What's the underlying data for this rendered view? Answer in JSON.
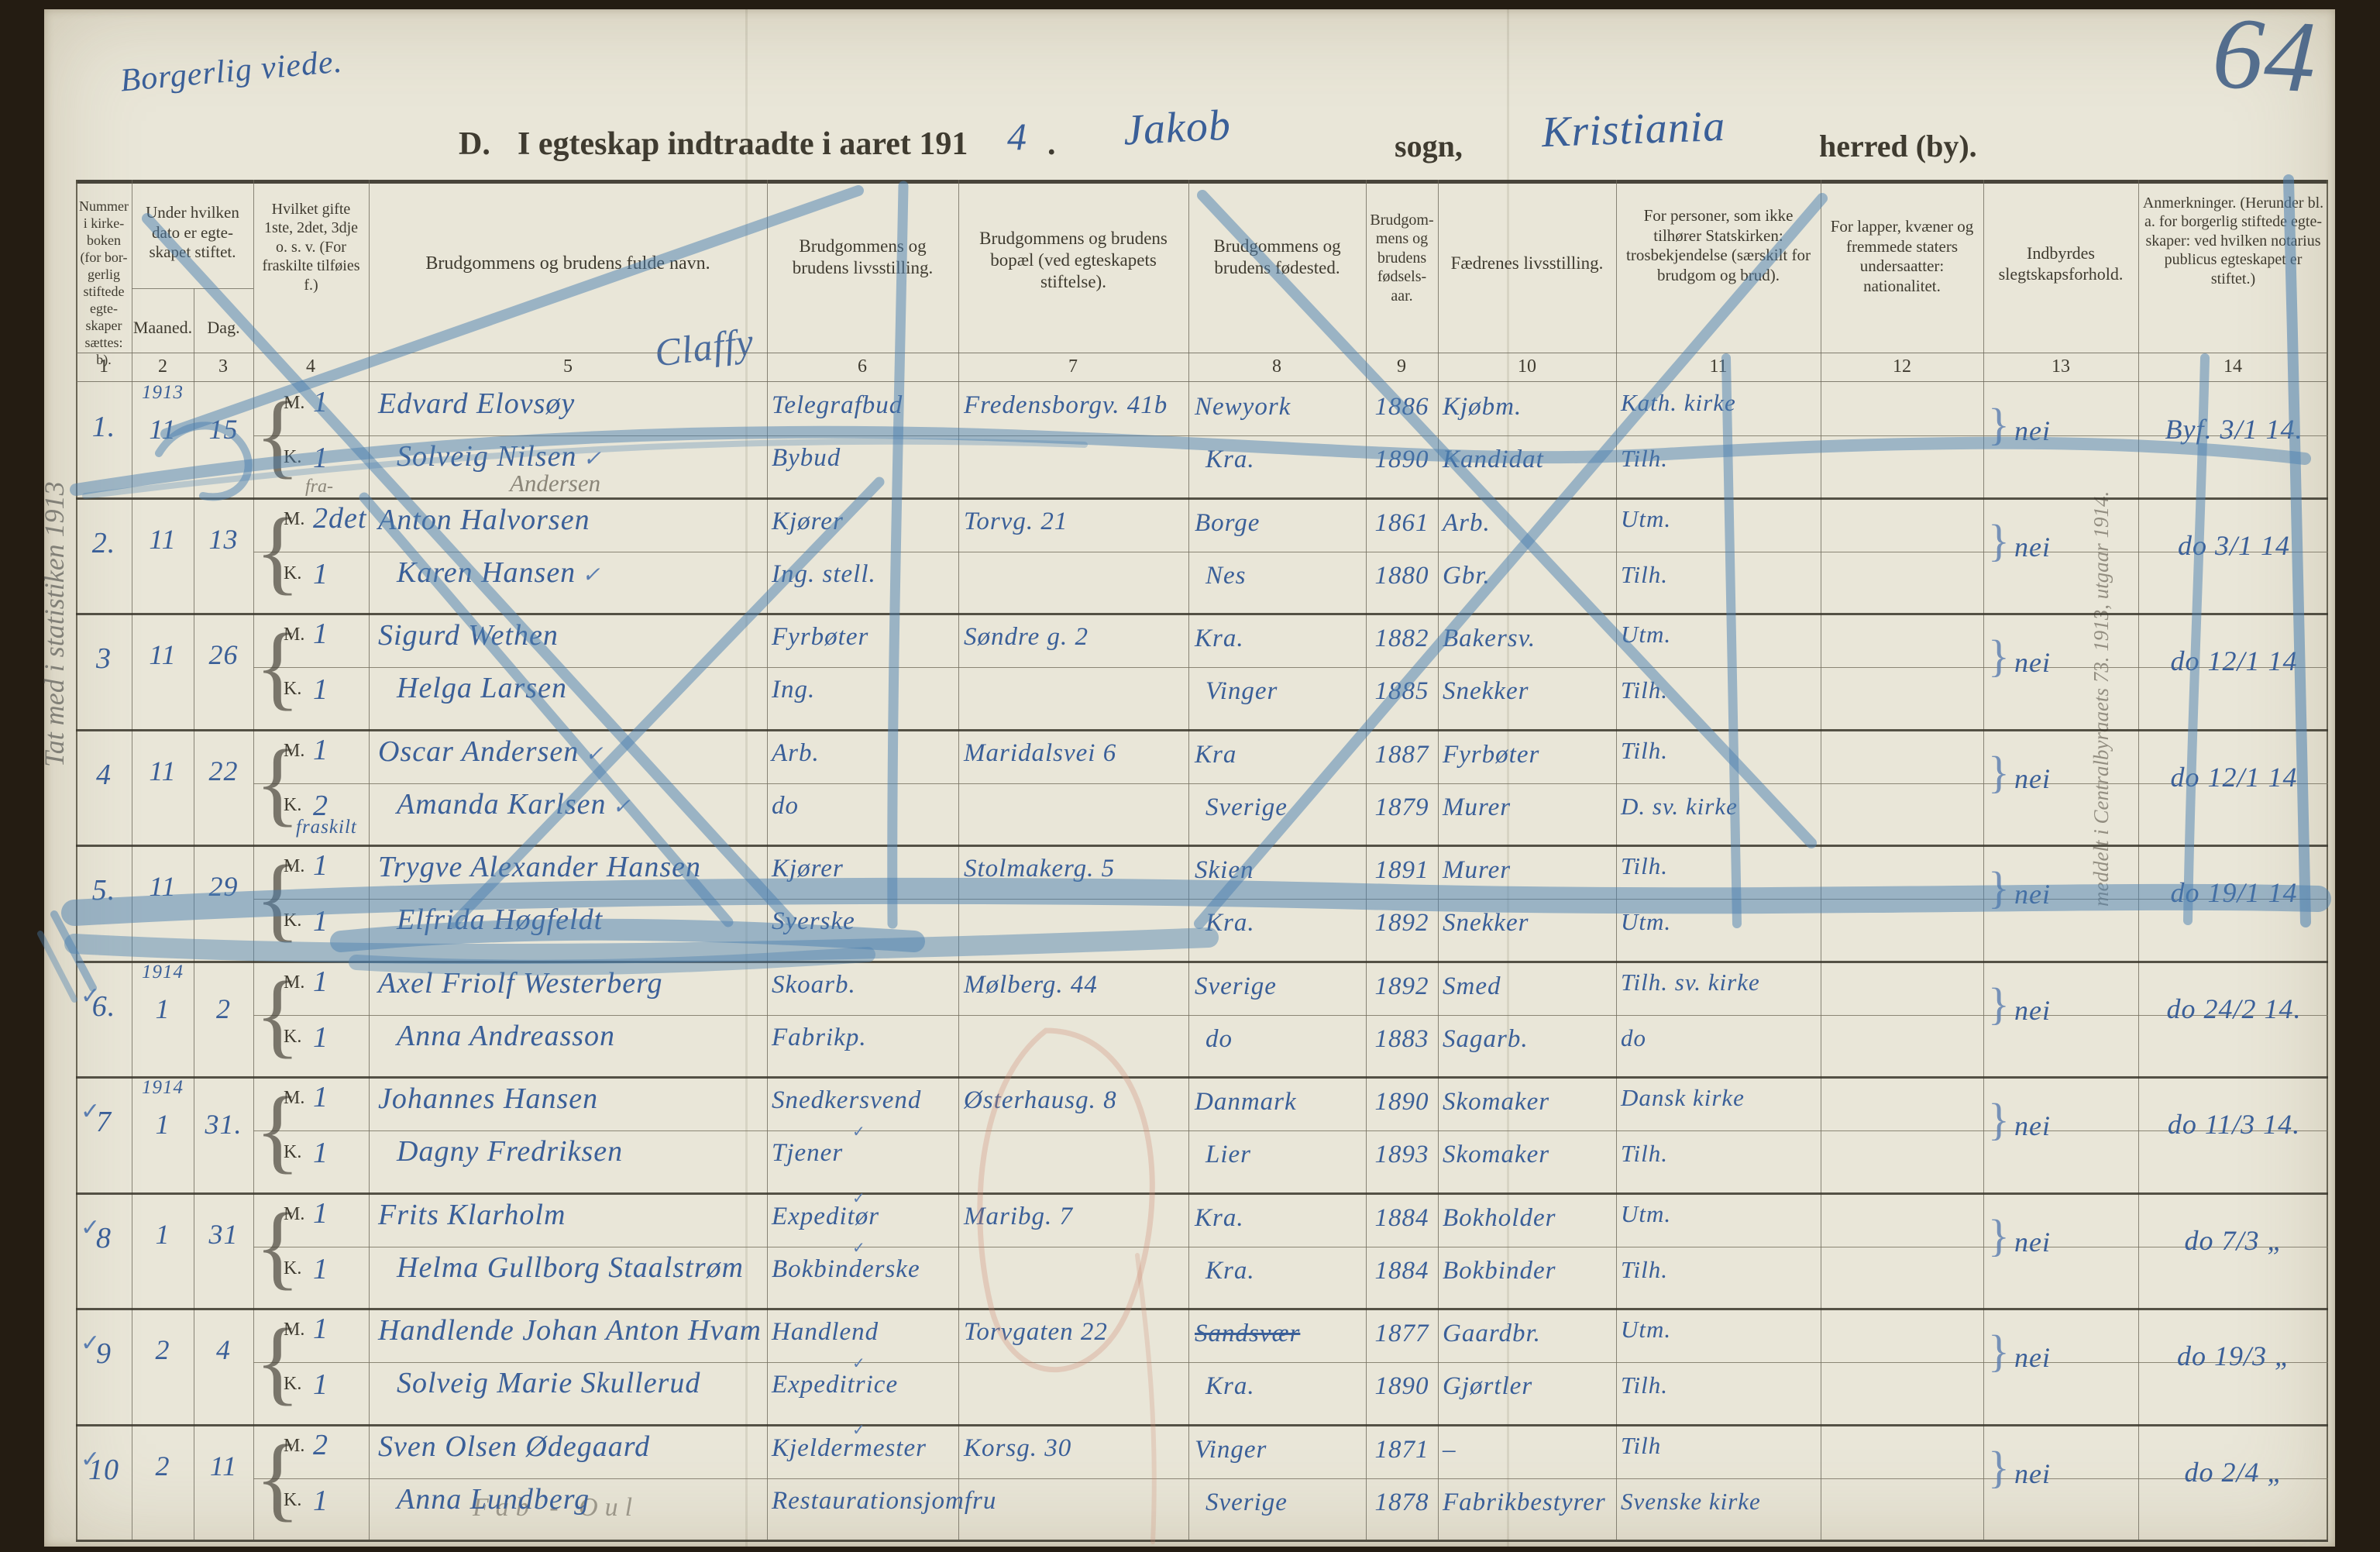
{
  "page": {
    "corner_number": "64",
    "top_left_note": "Borgerlig viede.",
    "title": {
      "prefix": "D.",
      "printed": "I egteskap indtraadte i aaret 191",
      "year_digit": "4",
      "after_year": ".",
      "parish_value": "Jakob",
      "parish_label": "sogn,",
      "district_value": "Kristiania",
      "district_label": "herred (by)."
    },
    "header_scribble": "Claffy",
    "left_margin_note": "Tat med i statistiken 1913",
    "column13_note": "meddelt i Centralbyraaets 73. 1913, utgaar 1914.",
    "bottom_note": "Fab - Oul"
  },
  "table": {
    "m_label": "M.",
    "k_label": "K.",
    "sub_headers": {
      "month": "Maaned.",
      "day": "Dag."
    },
    "column_numbers": [
      "1",
      "2",
      "3",
      "4",
      "5",
      "6",
      "7",
      "8",
      "9",
      "10",
      "11",
      "12",
      "13",
      "14"
    ],
    "columns": [
      "Nummer i kirke-boken (for bor-gerlig stiftede egte-skaper sættes: b).",
      "Under hvilken dato er egte-skapet stiftet.",
      "Hvilket gifte 1ste, 2det, 3dje o. s. v. (For fraskilte tilføies f.)",
      "Brudgommens og brudens fulde navn.",
      "Brudgommens og brudens livsstilling.",
      "Brudgommens og brudens bopæl (ved egteskapets stiftelse).",
      "Brudgommens og brudens fødested.",
      "Brudgom-mens og brudens fødsels-aar.",
      "Fædrenes livsstilling.",
      "For personer, som ikke tilhører Statskirken: trosbekjendelse (særskilt for brudgom og brud).",
      "For lapper, kvæner og fremmede staters undersaatter: nationalitet.",
      "Indbyrdes slegtskapsforhold.",
      "Anmerkninger. (Herunder bl. a. for borgerlig stiftede egte-skaper: ved hvilken notarius publicus egteskapet er stiftet.)"
    ],
    "rows": [
      {
        "no": "1.",
        "check": false,
        "year": "1913",
        "month": "11",
        "day": "15",
        "m": {
          "g": "1",
          "name": "Edvard Elovsøy",
          "occ": "Telegrafbud",
          "res": "Fredensborgv. 41b",
          "born": "Newyork",
          "year": "1886",
          "father": "Kjøbm.",
          "faith": "Kath. kirke"
        },
        "k": {
          "g": "1",
          "name": "Solveig Nilsen",
          "name_check": true,
          "occ": "Bybud",
          "born": "Kra.",
          "year": "1890",
          "father": "Kandidat",
          "faith": "Tilh."
        },
        "rel": "nei",
        "remark": "Byf. 3/1 14."
      },
      {
        "no": "2.",
        "check": false,
        "month": "11",
        "day": "13",
        "m": {
          "g": "2det",
          "g_note": "fra-",
          "note_above": "Andersen",
          "name": "Anton Halvorsen",
          "occ": "Kjører",
          "res": "Torvg. 21",
          "born": "Borge",
          "year": "1861",
          "father": "Arb.",
          "faith": "Utm."
        },
        "k": {
          "g": "1",
          "name": "Karen Hansen",
          "name_check": true,
          "occ": "Ing. stell.",
          "born": "Nes",
          "year": "1880",
          "father": "Gbr.",
          "faith": "Tilh."
        },
        "rel": "nei",
        "remark": "do 3/1 14"
      },
      {
        "no": "3",
        "check": false,
        "month": "11",
        "day": "26",
        "m": {
          "g": "1",
          "name": "Sigurd Wethen",
          "occ": "Fyrbøter",
          "res": "Søndre g. 2",
          "born": "Kra.",
          "year": "1882",
          "father": "Bakersv.",
          "faith": "Utm."
        },
        "k": {
          "g": "1",
          "name": "Helga Larsen",
          "occ": "Ing.",
          "born": "Vinger",
          "year": "1885",
          "father": "Snekker",
          "faith": "Tilh."
        },
        "rel": "nei",
        "remark": "do 12/1 14"
      },
      {
        "no": "4",
        "check": false,
        "month": "11",
        "day": "22",
        "m": {
          "g": "1",
          "name": "Oscar Andersen",
          "name_check": true,
          "occ": "Arb.",
          "res": "Maridalsvei 6",
          "born": "Kra",
          "year": "1887",
          "father": "Fyrbøter",
          "faith": "Tilh."
        },
        "k": {
          "g": "2",
          "g_note_below": "fraskilt",
          "name": "Amanda Karlsen",
          "name_check": true,
          "occ": "do",
          "born": "Sverige",
          "year": "1879",
          "father": "Murer",
          "faith": "D. sv. kirke"
        },
        "rel": "nei",
        "remark": "do 12/1 14"
      },
      {
        "no": "5.",
        "check": false,
        "month": "11",
        "day": "29",
        "m": {
          "g": "1",
          "name": "Trygve Alexander Hansen",
          "occ": "Kjører",
          "res": "Stolmakerg. 5",
          "born": "Skien",
          "year": "1891",
          "father": "Murer",
          "faith": "Tilh."
        },
        "k": {
          "g": "1",
          "name": "Elfrida Høgfeldt",
          "occ": "Syerske",
          "born": "Kra.",
          "year": "1892",
          "father": "Snekker",
          "faith": "Utm."
        },
        "rel": "nei",
        "remark": "do 19/1 14"
      },
      {
        "no": "6.",
        "check": true,
        "year": "1914",
        "month": "1",
        "day": "2",
        "m": {
          "g": "1",
          "name": "Axel Friolf Westerberg",
          "occ": "Skoarb.",
          "res": "Mølberg. 44",
          "born": "Sverige",
          "year": "1892",
          "father": "Smed",
          "faith": "Tilh. sv. kirke"
        },
        "k": {
          "g": "1",
          "name": "Anna Andreasson",
          "occ": "Fabrikp.",
          "born": "do",
          "year": "1883",
          "father": "Sagarb.",
          "faith": "do"
        },
        "rel": "nei",
        "remark": "do 24/2 14."
      },
      {
        "no": "7",
        "check": true,
        "year": "1914",
        "month": "1",
        "day": "31.",
        "m": {
          "g": "1",
          "name": "Johannes Hansen",
          "occ": "Snedkersvend",
          "res": "Østerhausg. 8",
          "born": "Danmark",
          "year": "1890",
          "father": "Skomaker",
          "faith": "Dansk kirke"
        },
        "k": {
          "g": "1",
          "name": "Dagny Fredriksen",
          "occ": "Tjener",
          "occ_check": true,
          "born": "Lier",
          "year": "1893",
          "father": "Skomaker",
          "faith": "Tilh."
        },
        "rel": "nei",
        "remark": "do 11/3 14."
      },
      {
        "no": "8",
        "check": true,
        "month": "1",
        "day": "31",
        "m": {
          "g": "1",
          "name": "Frits Klarholm",
          "occ": "Expeditør",
          "occ_check": true,
          "res": "Maribg. 7",
          "born": "Kra.",
          "year": "1884",
          "father": "Bokholder",
          "faith": "Utm."
        },
        "k": {
          "g": "1",
          "name": "Helma Gullborg Staalstrøm",
          "occ": "Bokbinderske",
          "occ_check": true,
          "born": "Kra.",
          "year": "1884",
          "father": "Bokbinder",
          "faith": "Tilh."
        },
        "rel": "nei",
        "remark": "do 7/3 „"
      },
      {
        "no": "9",
        "check": true,
        "month": "2",
        "day": "4",
        "m": {
          "g": "1",
          "name": "Handlende Johan Anton Hvam",
          "occ": "Handlend",
          "res": "Torvgaten 22",
          "born": "Sandsvær",
          "born_struck": true,
          "year": "1877",
          "father": "Gaardbr.",
          "faith": "Utm."
        },
        "k": {
          "g": "1",
          "name": "Solveig Marie Skullerud",
          "occ": "Expeditrice",
          "occ_check": true,
          "born": "Kra.",
          "year": "1890",
          "father": "Gjørtler",
          "faith": "Tilh."
        },
        "rel": "nei",
        "remark": "do 19/3 „"
      },
      {
        "no": "10",
        "check": true,
        "month": "2",
        "day": "11",
        "m": {
          "g": "2",
          "name": "Sven Olsen Ødegaard",
          "occ": "Kjeldermester",
          "occ_check": true,
          "res": "Korsg. 30",
          "born": "Vinger",
          "year": "1871",
          "father": "–",
          "faith": "Tilh"
        },
        "k": {
          "g": "1",
          "name": "Anna Lundberg",
          "occ": "Restaurationsjomfru",
          "born": "Sverige",
          "year": "1878",
          "father": "Fabrikbestyrer",
          "faith": "Svenske kirke"
        },
        "rel": "nei",
        "remark": "do 2/4 „"
      }
    ]
  },
  "colors": {
    "ink": "#3a5f98",
    "pencil": "#8a8578",
    "crayon": "#4b80b0",
    "red_pencil": "#cf8a74",
    "paper": "#e9e6d8",
    "printed": "#3f3b30"
  }
}
